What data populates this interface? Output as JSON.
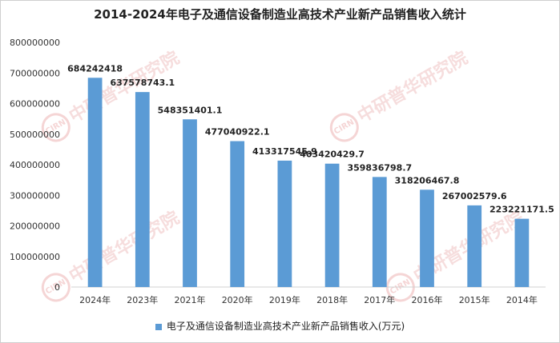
{
  "chart_data": {
    "type": "bar",
    "title": "2014-2024年电子及通信设备制造业高技术产业新产品销售收入统计",
    "categories": [
      "2024年",
      "2023年",
      "2021年",
      "2020年",
      "2019年",
      "2018年",
      "2017年",
      "2016年",
      "2015年",
      "2014年"
    ],
    "series": [
      {
        "name": "电子及通信设备制造业高技术产业新产品销售收入(万元)",
        "values": [
          684242418,
          637578743.1,
          548351401.1,
          477040922.1,
          413317545.9,
          403420429.7,
          359836798.7,
          318206467.8,
          267002579.6,
          223221171.5
        ],
        "labels": [
          "684242418",
          "637578743.1",
          "548351401.1",
          "477040922.1",
          "413317545.9",
          "403420429.7",
          "359836798.7",
          "318206467.8",
          "267002579.6",
          "223221171.5"
        ]
      }
    ],
    "ylim": [
      0,
      800000000
    ],
    "yticks": [
      "0",
      "100000000",
      "200000000",
      "300000000",
      "400000000",
      "500000000",
      "600000000",
      "700000000",
      "800000000"
    ],
    "grid": false,
    "legend": "bottom",
    "bar_color": "#5b9bd5"
  },
  "watermark": {
    "text": "中研普华研究院",
    "logo_text": "CIRN"
  }
}
